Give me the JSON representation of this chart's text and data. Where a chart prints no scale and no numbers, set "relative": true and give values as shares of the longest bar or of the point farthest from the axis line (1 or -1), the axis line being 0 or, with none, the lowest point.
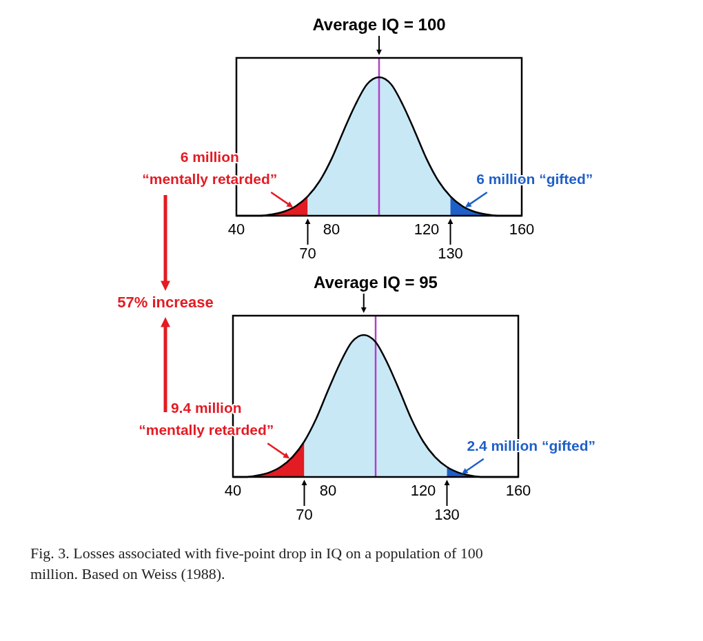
{
  "chart_data": [
    {
      "type": "area",
      "relative": true,
      "title": "Average IQ = 100",
      "xlim": [
        40,
        160
      ],
      "xticks": [
        40,
        80,
        120,
        160
      ],
      "series": [
        {
          "type": "area",
          "color": "#e31b23",
          "x": [
            40,
            45,
            50,
            55,
            60,
            65,
            70
          ],
          "values": [
            0,
            0,
            0,
            0.01,
            0.03,
            0.07,
            0.14
          ]
        },
        {
          "type": "area",
          "color": "#c8e8f6",
          "x": [
            70,
            75,
            80,
            85,
            90,
            95,
            100,
            105,
            110,
            115,
            120,
            125,
            130
          ],
          "values": [
            0.14,
            0.25,
            0.41,
            0.61,
            0.8,
            0.95,
            1,
            0.95,
            0.8,
            0.61,
            0.41,
            0.25,
            0.14
          ]
        },
        {
          "type": "area",
          "color": "#1f5fc8",
          "x": [
            130,
            135,
            140,
            145,
            150,
            155,
            160
          ],
          "values": [
            0.14,
            0.07,
            0.03,
            0.01,
            0,
            0,
            0
          ]
        },
        {
          "type": "line",
          "color": "#000000",
          "x": [
            40,
            45,
            50,
            55,
            60,
            65,
            70,
            75,
            80,
            85,
            90,
            95,
            100,
            105,
            110,
            115,
            120,
            125,
            130,
            135,
            140,
            145,
            150,
            155,
            160
          ],
          "values": [
            0,
            0,
            0,
            0.01,
            0.03,
            0.07,
            0.14,
            0.25,
            0.41,
            0.61,
            0.8,
            0.95,
            1,
            0.95,
            0.8,
            0.61,
            0.41,
            0.25,
            0.14,
            0.07,
            0.03,
            0.01,
            0,
            0,
            0
          ]
        }
      ],
      "ref_lines": [
        {
          "axis": "x",
          "value": 100,
          "color": "#b040c8"
        }
      ],
      "annotations": [
        {
          "text": "6 million\n“mentally retarded”",
          "x": 65,
          "y": 0.07
        },
        {
          "text": "6 million “gifted”",
          "x": 135,
          "y": 0.07
        },
        {
          "text": "70",
          "x": 70,
          "y": 0
        },
        {
          "text": "130",
          "x": 130,
          "y": 0
        },
        "57% increase"
      ]
    },
    {
      "type": "area",
      "relative": true,
      "title": "Average IQ = 95",
      "xlim": [
        40,
        160
      ],
      "xticks": [
        40,
        80,
        120,
        160
      ],
      "series": [
        {
          "type": "area",
          "color": "#e31b23",
          "x": [
            40,
            45,
            50,
            55,
            60,
            65,
            70
          ],
          "values": [
            0,
            0,
            0.01,
            0.03,
            0.07,
            0.14,
            0.25
          ]
        },
        {
          "type": "area",
          "color": "#c8e8f6",
          "x": [
            70,
            75,
            80,
            85,
            90,
            95,
            100,
            105,
            110,
            115,
            120,
            125,
            130
          ],
          "values": [
            0.25,
            0.41,
            0.61,
            0.8,
            0.95,
            1,
            0.95,
            0.8,
            0.61,
            0.41,
            0.25,
            0.14,
            0.07
          ]
        },
        {
          "type": "area",
          "color": "#1f5fc8",
          "x": [
            130,
            135,
            140,
            145,
            150,
            155,
            160
          ],
          "values": [
            0.07,
            0.03,
            0.01,
            0,
            0,
            0,
            0
          ]
        },
        {
          "type": "line",
          "color": "#000000",
          "x": [
            40,
            45,
            50,
            55,
            60,
            65,
            70,
            75,
            80,
            85,
            90,
            95,
            100,
            105,
            110,
            115,
            120,
            125,
            130,
            135,
            140,
            145,
            150,
            155,
            160
          ],
          "values": [
            0,
            0,
            0.01,
            0.03,
            0.07,
            0.14,
            0.25,
            0.41,
            0.61,
            0.8,
            0.95,
            1,
            0.95,
            0.8,
            0.61,
            0.41,
            0.25,
            0.14,
            0.07,
            0.03,
            0.01,
            0,
            0,
            0,
            0
          ]
        }
      ],
      "ref_lines": [
        {
          "axis": "x",
          "value": 100,
          "color": "#b040c8"
        }
      ],
      "annotations": [
        {
          "text": "9.4 million\n“mentally retarded”",
          "x": 65,
          "y": 0.14
        },
        {
          "text": "2.4 million “gifted”",
          "x": 135,
          "y": 0.03
        },
        {
          "text": "70",
          "x": 70,
          "y": 0
        },
        {
          "text": "130",
          "x": 130,
          "y": 0
        },
        "Fig. 3. Losses associated with five-point drop in IQ on a population of 100 million. Based on Weiss (1988)."
      ]
    }
  ]
}
